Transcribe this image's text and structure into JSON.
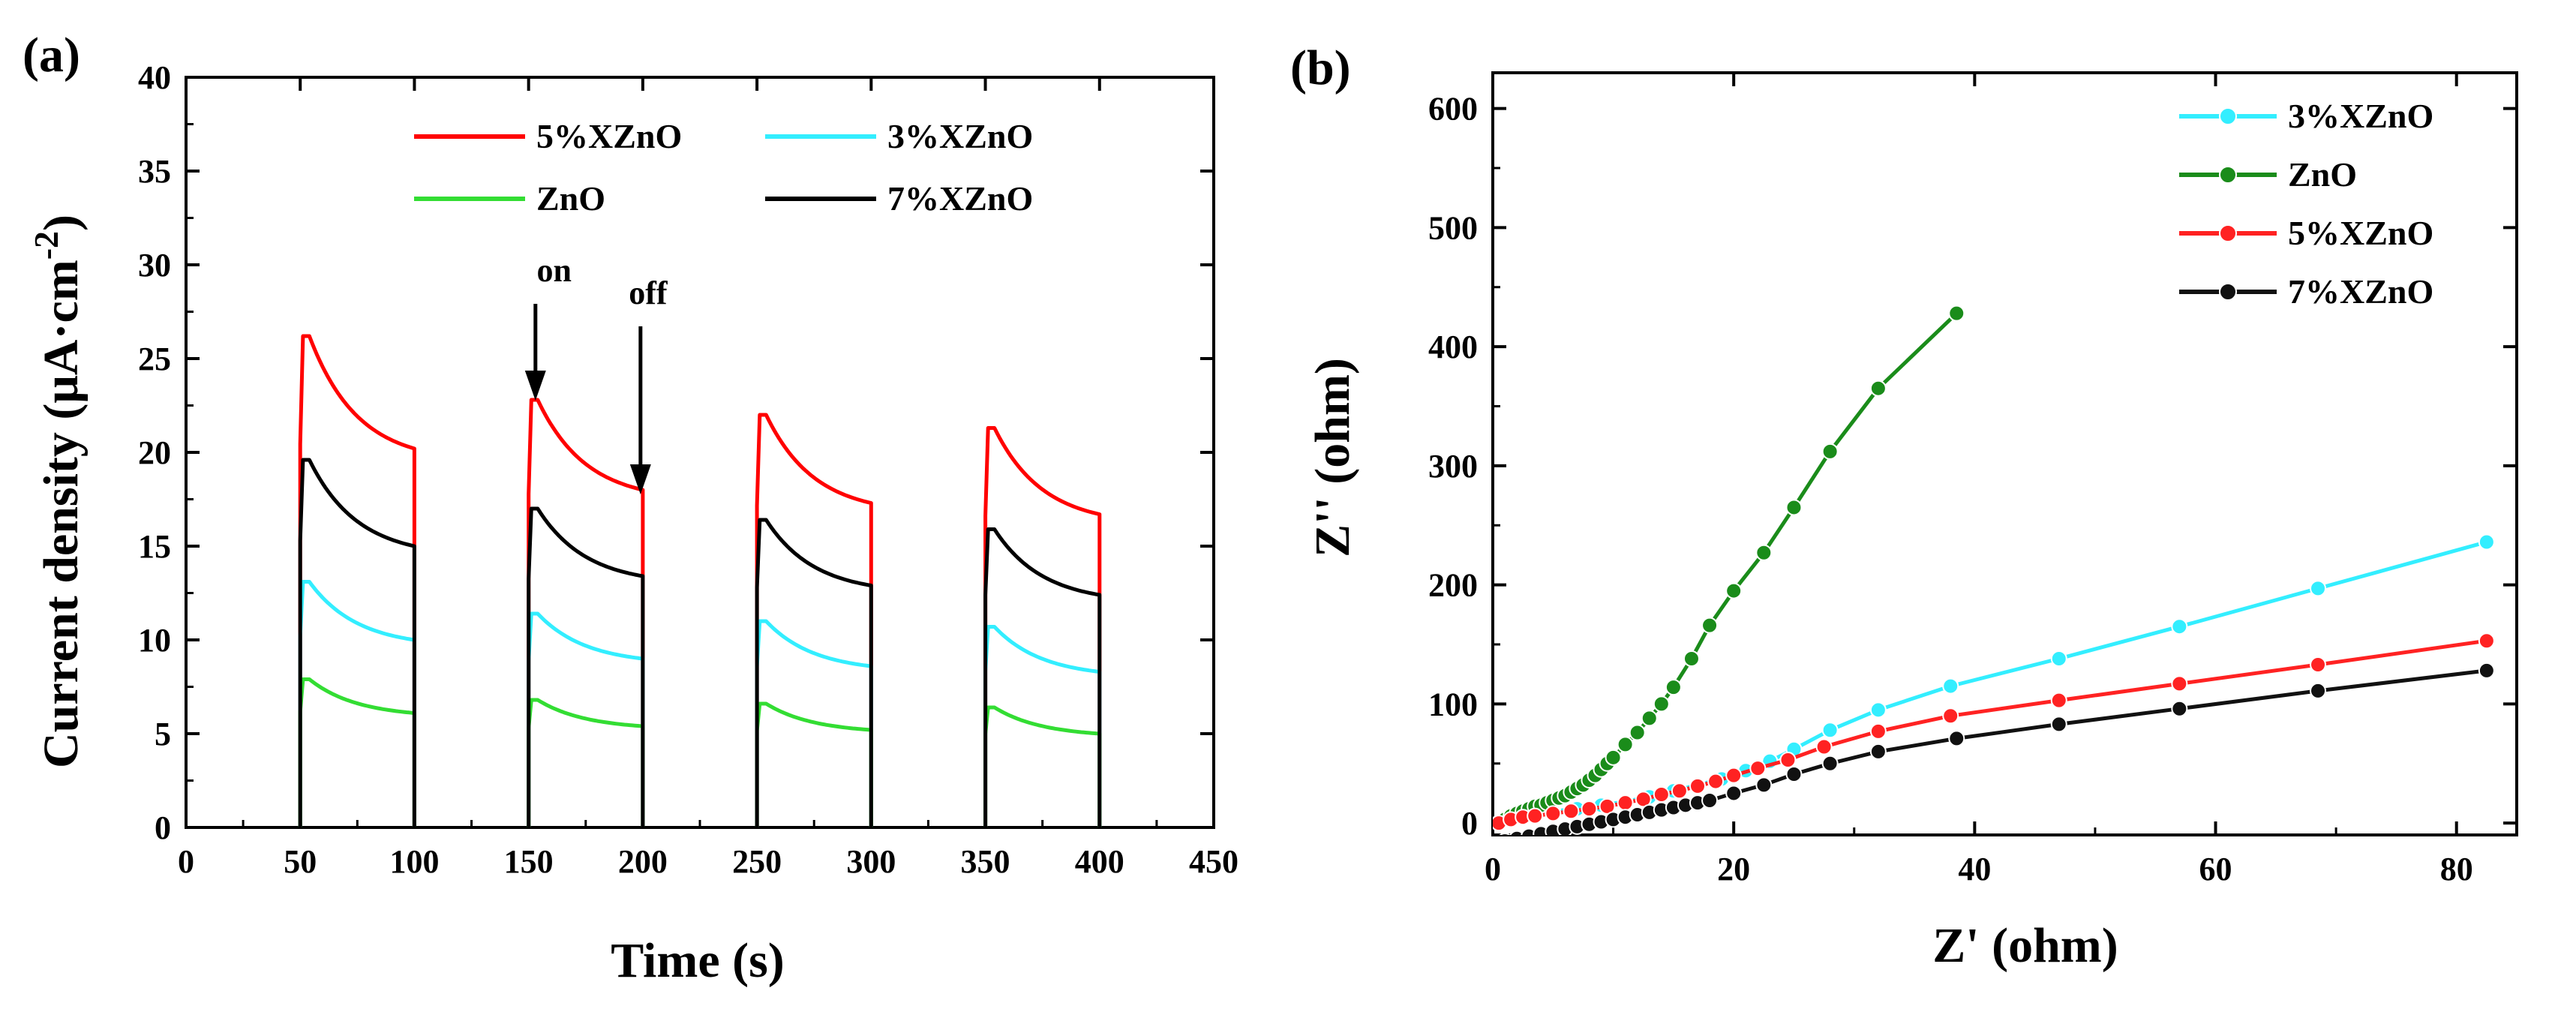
{
  "panels": {
    "a": {
      "label": "(a)"
    },
    "b": {
      "label": "(b)"
    }
  },
  "chart_data": [
    {
      "panel": "(a)",
      "type": "line",
      "xlabel": "Time (s)",
      "ylabel": "Current density (μA·cm",
      "ylabel_sup": "-2",
      "ylabel_close": ")",
      "xlim": [
        0,
        450
      ],
      "ylim": [
        0,
        40
      ],
      "xticks": [
        0,
        50,
        100,
        150,
        200,
        250,
        300,
        350,
        400,
        450
      ],
      "yticks": [
        0,
        5,
        10,
        15,
        20,
        25,
        30,
        35,
        40
      ],
      "legend_position": "top",
      "annotations": [
        {
          "text": "on",
          "x": 153,
          "y": 23
        },
        {
          "text": "off",
          "x": 199,
          "y": 18
        }
      ],
      "light_cycles": [
        [
          50,
          100
        ],
        [
          150,
          200
        ],
        [
          250,
          300
        ],
        [
          350,
          400
        ]
      ],
      "series": [
        {
          "name": "5%XZnO",
          "color": "#ff0000",
          "cycles": [
            {
              "on": 50,
              "off": 100,
              "peak": 26.2,
              "end": 20.2
            },
            {
              "on": 150,
              "off": 200,
              "peak": 22.8,
              "end": 18.0
            },
            {
              "on": 250,
              "off": 300,
              "peak": 22.0,
              "end": 17.3
            },
            {
              "on": 350,
              "off": 400,
              "peak": 21.3,
              "end": 16.7
            }
          ]
        },
        {
          "name": "3%XZnO",
          "color": "#33eeff",
          "cycles": [
            {
              "on": 50,
              "off": 100,
              "peak": 13.1,
              "end": 10.0
            },
            {
              "on": 150,
              "off": 200,
              "peak": 11.4,
              "end": 9.0
            },
            {
              "on": 250,
              "off": 300,
              "peak": 11.0,
              "end": 8.6
            },
            {
              "on": 350,
              "off": 400,
              "peak": 10.7,
              "end": 8.3
            }
          ]
        },
        {
          "name": "ZnO",
          "color": "#33dd33",
          "cycles": [
            {
              "on": 50,
              "off": 100,
              "peak": 7.9,
              "end": 6.1
            },
            {
              "on": 150,
              "off": 200,
              "peak": 6.8,
              "end": 5.4
            },
            {
              "on": 250,
              "off": 300,
              "peak": 6.6,
              "end": 5.2
            },
            {
              "on": 350,
              "off": 400,
              "peak": 6.4,
              "end": 5.0
            }
          ]
        },
        {
          "name": "7%XZnO",
          "color": "#000000",
          "cycles": [
            {
              "on": 50,
              "off": 100,
              "peak": 19.6,
              "end": 15.0
            },
            {
              "on": 150,
              "off": 200,
              "peak": 17.0,
              "end": 13.4
            },
            {
              "on": 250,
              "off": 300,
              "peak": 16.4,
              "end": 12.9
            },
            {
              "on": 350,
              "off": 400,
              "peak": 15.9,
              "end": 12.4
            }
          ]
        }
      ]
    },
    {
      "panel": "(b)",
      "type": "line",
      "xlabel": "Z' (ohm)",
      "ylabel": "Z'' (ohm)",
      "xlim": [
        0,
        85
      ],
      "ylim": [
        -10,
        630
      ],
      "xticks": [
        0,
        20,
        40,
        60,
        80
      ],
      "yticks": [
        0,
        100,
        200,
        300,
        400,
        500,
        600
      ],
      "legend_position": "top-right",
      "series": [
        {
          "name": "3%XZnO",
          "color": "#33eeff",
          "marker": "circle",
          "x": [
            0.5,
            1.5,
            2.5,
            3.5,
            5,
            7,
            9,
            11,
            13,
            15,
            17,
            19,
            21,
            23,
            25,
            28,
            32,
            38,
            47,
            57,
            68.5,
            82.5
          ],
          "y": [
            0,
            4,
            6,
            8,
            10,
            12,
            15,
            18,
            22,
            27,
            32,
            37,
            44,
            52,
            62,
            78,
            95,
            115,
            138,
            165,
            197,
            236
          ]
        },
        {
          "name": "ZnO",
          "color": "#1a8c1a",
          "marker": "circle",
          "x": [
            0.5,
            1,
            1.5,
            2,
            2.5,
            3,
            3.5,
            4,
            4.5,
            5,
            5.5,
            6,
            6.5,
            7,
            7.5,
            8,
            8.5,
            9,
            9.5,
            10,
            11,
            12,
            13,
            14,
            15,
            16.5,
            18,
            20,
            22.5,
            25,
            28,
            32,
            38.5
          ],
          "y": [
            0,
            3,
            6,
            8,
            10,
            12,
            14,
            15,
            17,
            19,
            21,
            23,
            26,
            29,
            32,
            36,
            40,
            45,
            50,
            55,
            66,
            76,
            88,
            100,
            114,
            138,
            166,
            195,
            227,
            265,
            312,
            365,
            428
          ]
        },
        {
          "name": "5%XZnO",
          "color": "#ff2222",
          "marker": "circle",
          "x": [
            0.5,
            1.5,
            2.5,
            3.5,
            5,
            6.5,
            8,
            9.5,
            11,
            12.5,
            14,
            15.5,
            17,
            18.5,
            20,
            22,
            24.5,
            27.5,
            32,
            38,
            47,
            57,
            68.5,
            82.5
          ],
          "y": [
            0,
            3,
            5,
            6,
            8,
            10,
            12,
            14,
            17,
            20,
            24,
            27,
            31,
            35,
            40,
            46,
            53,
            64,
            77,
            90,
            103,
            117,
            133,
            153
          ]
        },
        {
          "name": "7%XZnO",
          "color": "#111111",
          "marker": "circle",
          "x": [
            1,
            2,
            3,
            4,
            5,
            6,
            7,
            8,
            9,
            10,
            11,
            12,
            13,
            14,
            15,
            16,
            17,
            18,
            20,
            22.5,
            25,
            28,
            32,
            38.5,
            47,
            57,
            68.5,
            82.5
          ],
          "y": [
            -15,
            -13,
            -11,
            -9,
            -7,
            -5,
            -3,
            -1,
            1,
            3,
            5,
            7,
            9,
            11,
            13,
            15,
            17,
            19,
            25,
            32,
            41,
            50,
            60,
            71,
            83,
            96,
            111,
            128
          ]
        }
      ]
    }
  ]
}
